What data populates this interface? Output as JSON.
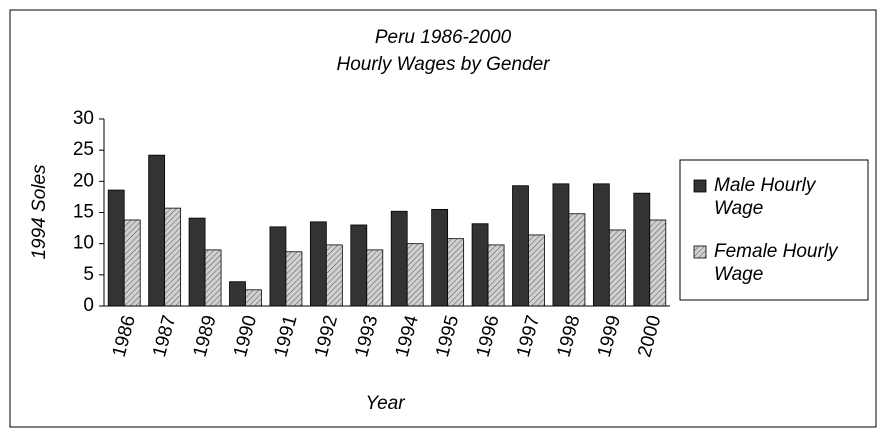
{
  "chart_data": {
    "type": "bar",
    "title": "Peru 1986-2000",
    "subtitle": "Hourly Wages by Gender",
    "x_label": "Year",
    "y_label": "1994 Soles",
    "categories": [
      "1986",
      "1987",
      "1989",
      "1990",
      "1991",
      "1992",
      "1993",
      "1994",
      "1995",
      "1996",
      "1997",
      "1998",
      "1999",
      "2000"
    ],
    "series": [
      {
        "name": "Male Hourly Wage",
        "color": "#333333",
        "values": [
          18.6,
          24.2,
          14.1,
          3.9,
          12.7,
          13.5,
          13.0,
          15.2,
          15.5,
          13.2,
          19.3,
          19.6,
          19.6,
          18.1
        ]
      },
      {
        "name": "Female Hourly Wage",
        "color": "#d0d0d0",
        "values": [
          13.8,
          15.7,
          9.0,
          2.6,
          8.7,
          9.8,
          9.0,
          10.0,
          10.8,
          9.8,
          11.4,
          14.8,
          12.2,
          13.8
        ]
      }
    ],
    "ylim": [
      0,
      30
    ],
    "yticks": [
      0,
      5,
      10,
      15,
      20,
      25,
      30
    ],
    "grid": false,
    "legend": "right"
  }
}
